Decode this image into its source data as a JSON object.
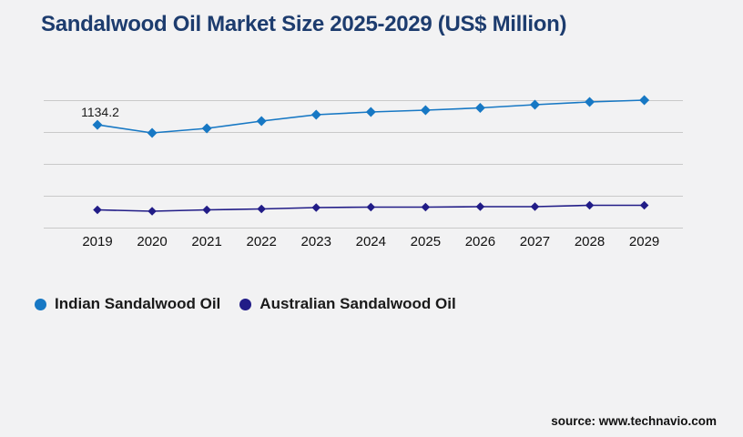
{
  "header": {
    "title": "Sandalwood Oil Market Size 2025-2029 (US$ Million)",
    "title_color": "#1d3c6e"
  },
  "chart_data": {
    "type": "line",
    "title": "Sandalwood Oil Market Size 2025-2029 (US$ Million)",
    "x": [
      "2019",
      "2020",
      "2021",
      "2022",
      "2023",
      "2024",
      "2025",
      "2026",
      "2027",
      "2028",
      "2029"
    ],
    "series": [
      {
        "name": "Indian Sandalwood Oil",
        "color": "#1778c4",
        "marker": "diamond",
        "values": [
          1134.2,
          1045,
          1095,
          1175,
          1245,
          1275,
          1295,
          1320,
          1355,
          1385,
          1405
        ]
      },
      {
        "name": "Australian Sandalwood Oil",
        "color": "#211c87",
        "marker": "diamond",
        "values": [
          200,
          185,
          200,
          210,
          225,
          230,
          230,
          235,
          235,
          250,
          250
        ]
      }
    ],
    "xlabel": "",
    "ylabel": "",
    "ylim": [
      0,
      1400
    ],
    "y_axis_labels_visible": false,
    "grid": {
      "horizontal_lines": 5,
      "color": "#c9c9c9",
      "y_values_estimated": [
        0,
        350,
        700,
        1050,
        1400
      ]
    },
    "data_labels": [
      {
        "series": 0,
        "index": 0,
        "text": "1134.2"
      }
    ],
    "legend_position": "bottom-left"
  },
  "legend": {
    "items": [
      {
        "label": "Indian Sandalwood Oil",
        "color": "#1778c4"
      },
      {
        "label": "Australian Sandalwood Oil",
        "color": "#211c87"
      }
    ]
  },
  "footer": {
    "source": "source: www.technavio.com"
  }
}
